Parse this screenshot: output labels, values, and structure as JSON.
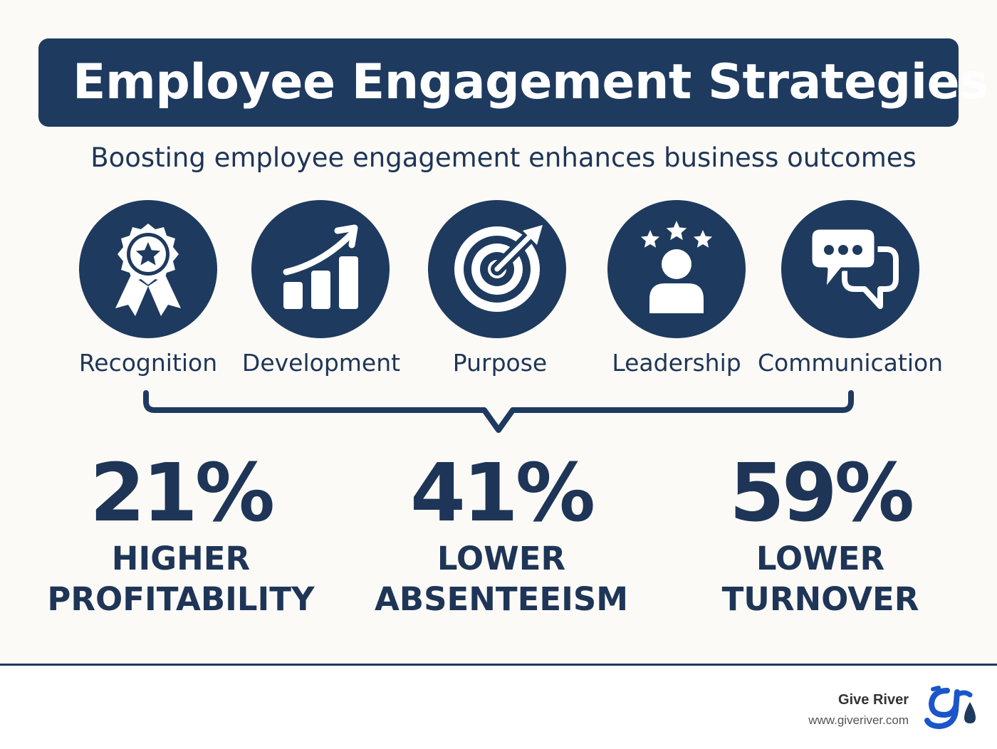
{
  "title": "Employee Engagement Strategies",
  "subtitle": "Boosting employee engagement enhances business outcomes",
  "strategies": [
    {
      "label": "Recognition",
      "icon": "award-ribbon-icon"
    },
    {
      "label": "Development",
      "icon": "growth-chart-icon"
    },
    {
      "label": "Purpose",
      "icon": "target-icon"
    },
    {
      "label": "Leadership",
      "icon": "leader-stars-icon"
    },
    {
      "label": "Communication",
      "icon": "chat-bubbles-icon"
    }
  ],
  "stats": [
    {
      "value": "21%",
      "line1": "HIGHER",
      "line2": "PROFITABILITY"
    },
    {
      "value": "41%",
      "line1": "LOWER",
      "line2": "ABSENTEEISM"
    },
    {
      "value": "59%",
      "line1": "LOWER",
      "line2": "TURNOVER"
    }
  ],
  "footer": {
    "brand": "Give River",
    "url": "www.giveriver.com"
  },
  "colors": {
    "navy": "#1e3a5f",
    "background": "#fbfaf6",
    "logo_blue": "#1a56c9"
  }
}
